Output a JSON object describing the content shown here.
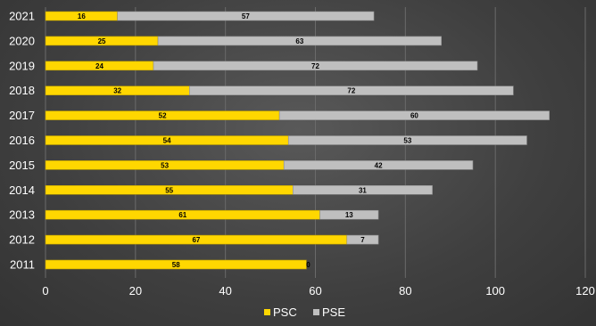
{
  "chart_data": {
    "type": "bar",
    "orientation": "horizontal",
    "stacked": true,
    "categories": [
      "2011",
      "2012",
      "2013",
      "2014",
      "2015",
      "2016",
      "2017",
      "2018",
      "2019",
      "2020",
      "2021"
    ],
    "series": [
      {
        "name": "PSC",
        "values": [
          58,
          67,
          61,
          55,
          53,
          54,
          52,
          32,
          24,
          25,
          16
        ],
        "color": "#FFD700"
      },
      {
        "name": "PSE",
        "values": [
          0,
          7,
          13,
          31,
          42,
          53,
          60,
          72,
          72,
          63,
          57
        ],
        "color": "#BFBFBF"
      }
    ],
    "xlim": [
      0,
      120
    ],
    "xticks": [
      0,
      20,
      40,
      60,
      80,
      100,
      120
    ],
    "grid": true,
    "legend": "bottom",
    "data_labels": true
  }
}
